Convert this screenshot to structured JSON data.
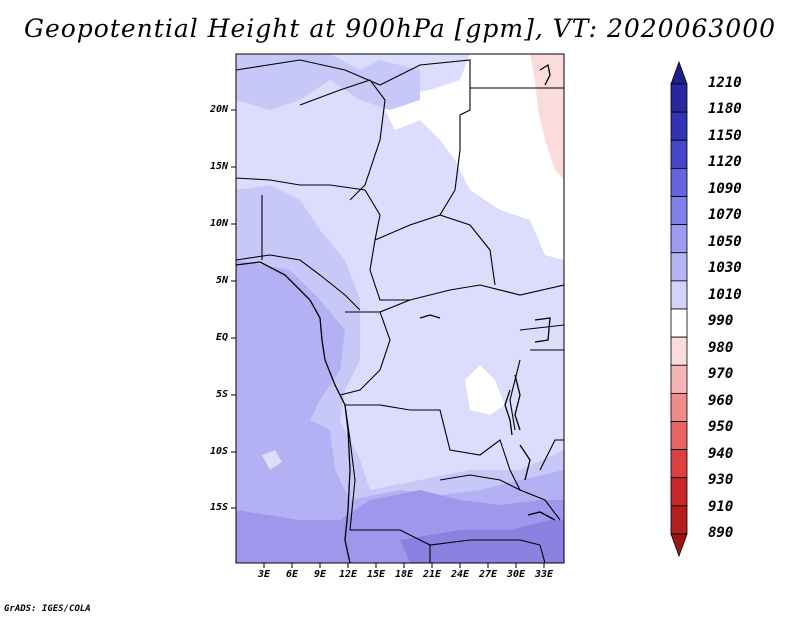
{
  "title": "Geopotential Height at 900hPa [gpm], VT: 2020063000",
  "credit": "GrADS: IGES/COLA",
  "lat_labels": [
    "20N",
    "15N",
    "10N",
    "5N",
    "EQ",
    "5S",
    "10S",
    "15S"
  ],
  "lon_labels": [
    "3E",
    "6E",
    "9E",
    "12E",
    "15E",
    "18E",
    "21E",
    "24E",
    "27E",
    "30E",
    "33E"
  ],
  "colorbar": {
    "levels": [
      "1210",
      "1180",
      "1150",
      "1120",
      "1090",
      "1070",
      "1050",
      "1030",
      "1010",
      "990",
      "980",
      "970",
      "960",
      "950",
      "940",
      "930",
      "910",
      "890"
    ],
    "colors": [
      "#1e1e8c",
      "#28289e",
      "#3232b4",
      "#4646c8",
      "#6464dc",
      "#8080e6",
      "#9c9cf0",
      "#b4b4f6",
      "#d2d2fa",
      "#ffffff",
      "#fbdcdc",
      "#f6b4b4",
      "#ee8c8c",
      "#e66464",
      "#dc4040",
      "#c82828",
      "#b41e1e",
      "#a01414"
    ]
  },
  "colors": {
    "lightest": "#dcdcfc",
    "light": "#c8c8f8",
    "mid": "#b4b0f4",
    "dark": "#a096ec",
    "darkest": "#8c80e0",
    "white": "#ffffff",
    "pink": "#fbdcdc"
  }
}
